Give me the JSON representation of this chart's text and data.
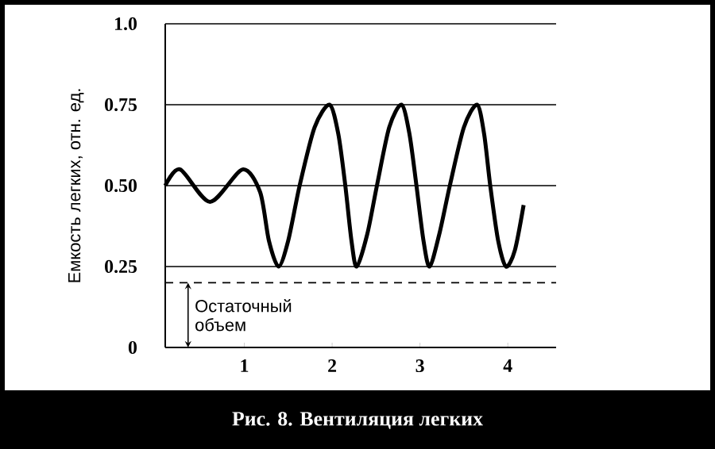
{
  "chart_data": {
    "type": "line",
    "title": "Рис. 8. Вентиляция легких",
    "ylabel": "Емкость легких, отн. ед.",
    "x": [
      0.1,
      0.27,
      0.61,
      0.98,
      1.18,
      1.28,
      1.39,
      1.5,
      1.63,
      1.8,
      1.97,
      2.07,
      2.15,
      2.22,
      2.28,
      2.4,
      2.51,
      2.65,
      2.79,
      2.88,
      2.96,
      3.04,
      3.11,
      3.22,
      3.34,
      3.5,
      3.65,
      3.73,
      3.8,
      3.89,
      3.98,
      4.08,
      4.18
    ],
    "series": [
      {
        "color": "#000000",
        "values": [
          0.5,
          0.55,
          0.45,
          0.55,
          0.48,
          0.33,
          0.25,
          0.33,
          0.5,
          0.68,
          0.75,
          0.66,
          0.5,
          0.33,
          0.25,
          0.35,
          0.5,
          0.68,
          0.75,
          0.66,
          0.5,
          0.33,
          0.25,
          0.35,
          0.5,
          0.68,
          0.75,
          0.66,
          0.5,
          0.33,
          0.25,
          0.3,
          0.44
        ]
      }
    ],
    "xlim": [
      0.1,
      4.55
    ],
    "ylim": [
      0,
      1
    ],
    "xticks": [
      1,
      2,
      3,
      4
    ],
    "yticks": [
      0,
      0.25,
      {
        "value": 0.5,
        "label": "0.50"
      },
      0.75,
      {
        "value": 1,
        "label": "1.0"
      }
    ],
    "grid": "y",
    "marker": "none",
    "ref_lines": [
      {
        "axis": "y",
        "value": 0.2,
        "line_style": "dashed"
      }
    ],
    "annotations": [
      {
        "text": "Остаточный объем",
        "x": 0.36,
        "y": 0.2
      }
    ]
  }
}
